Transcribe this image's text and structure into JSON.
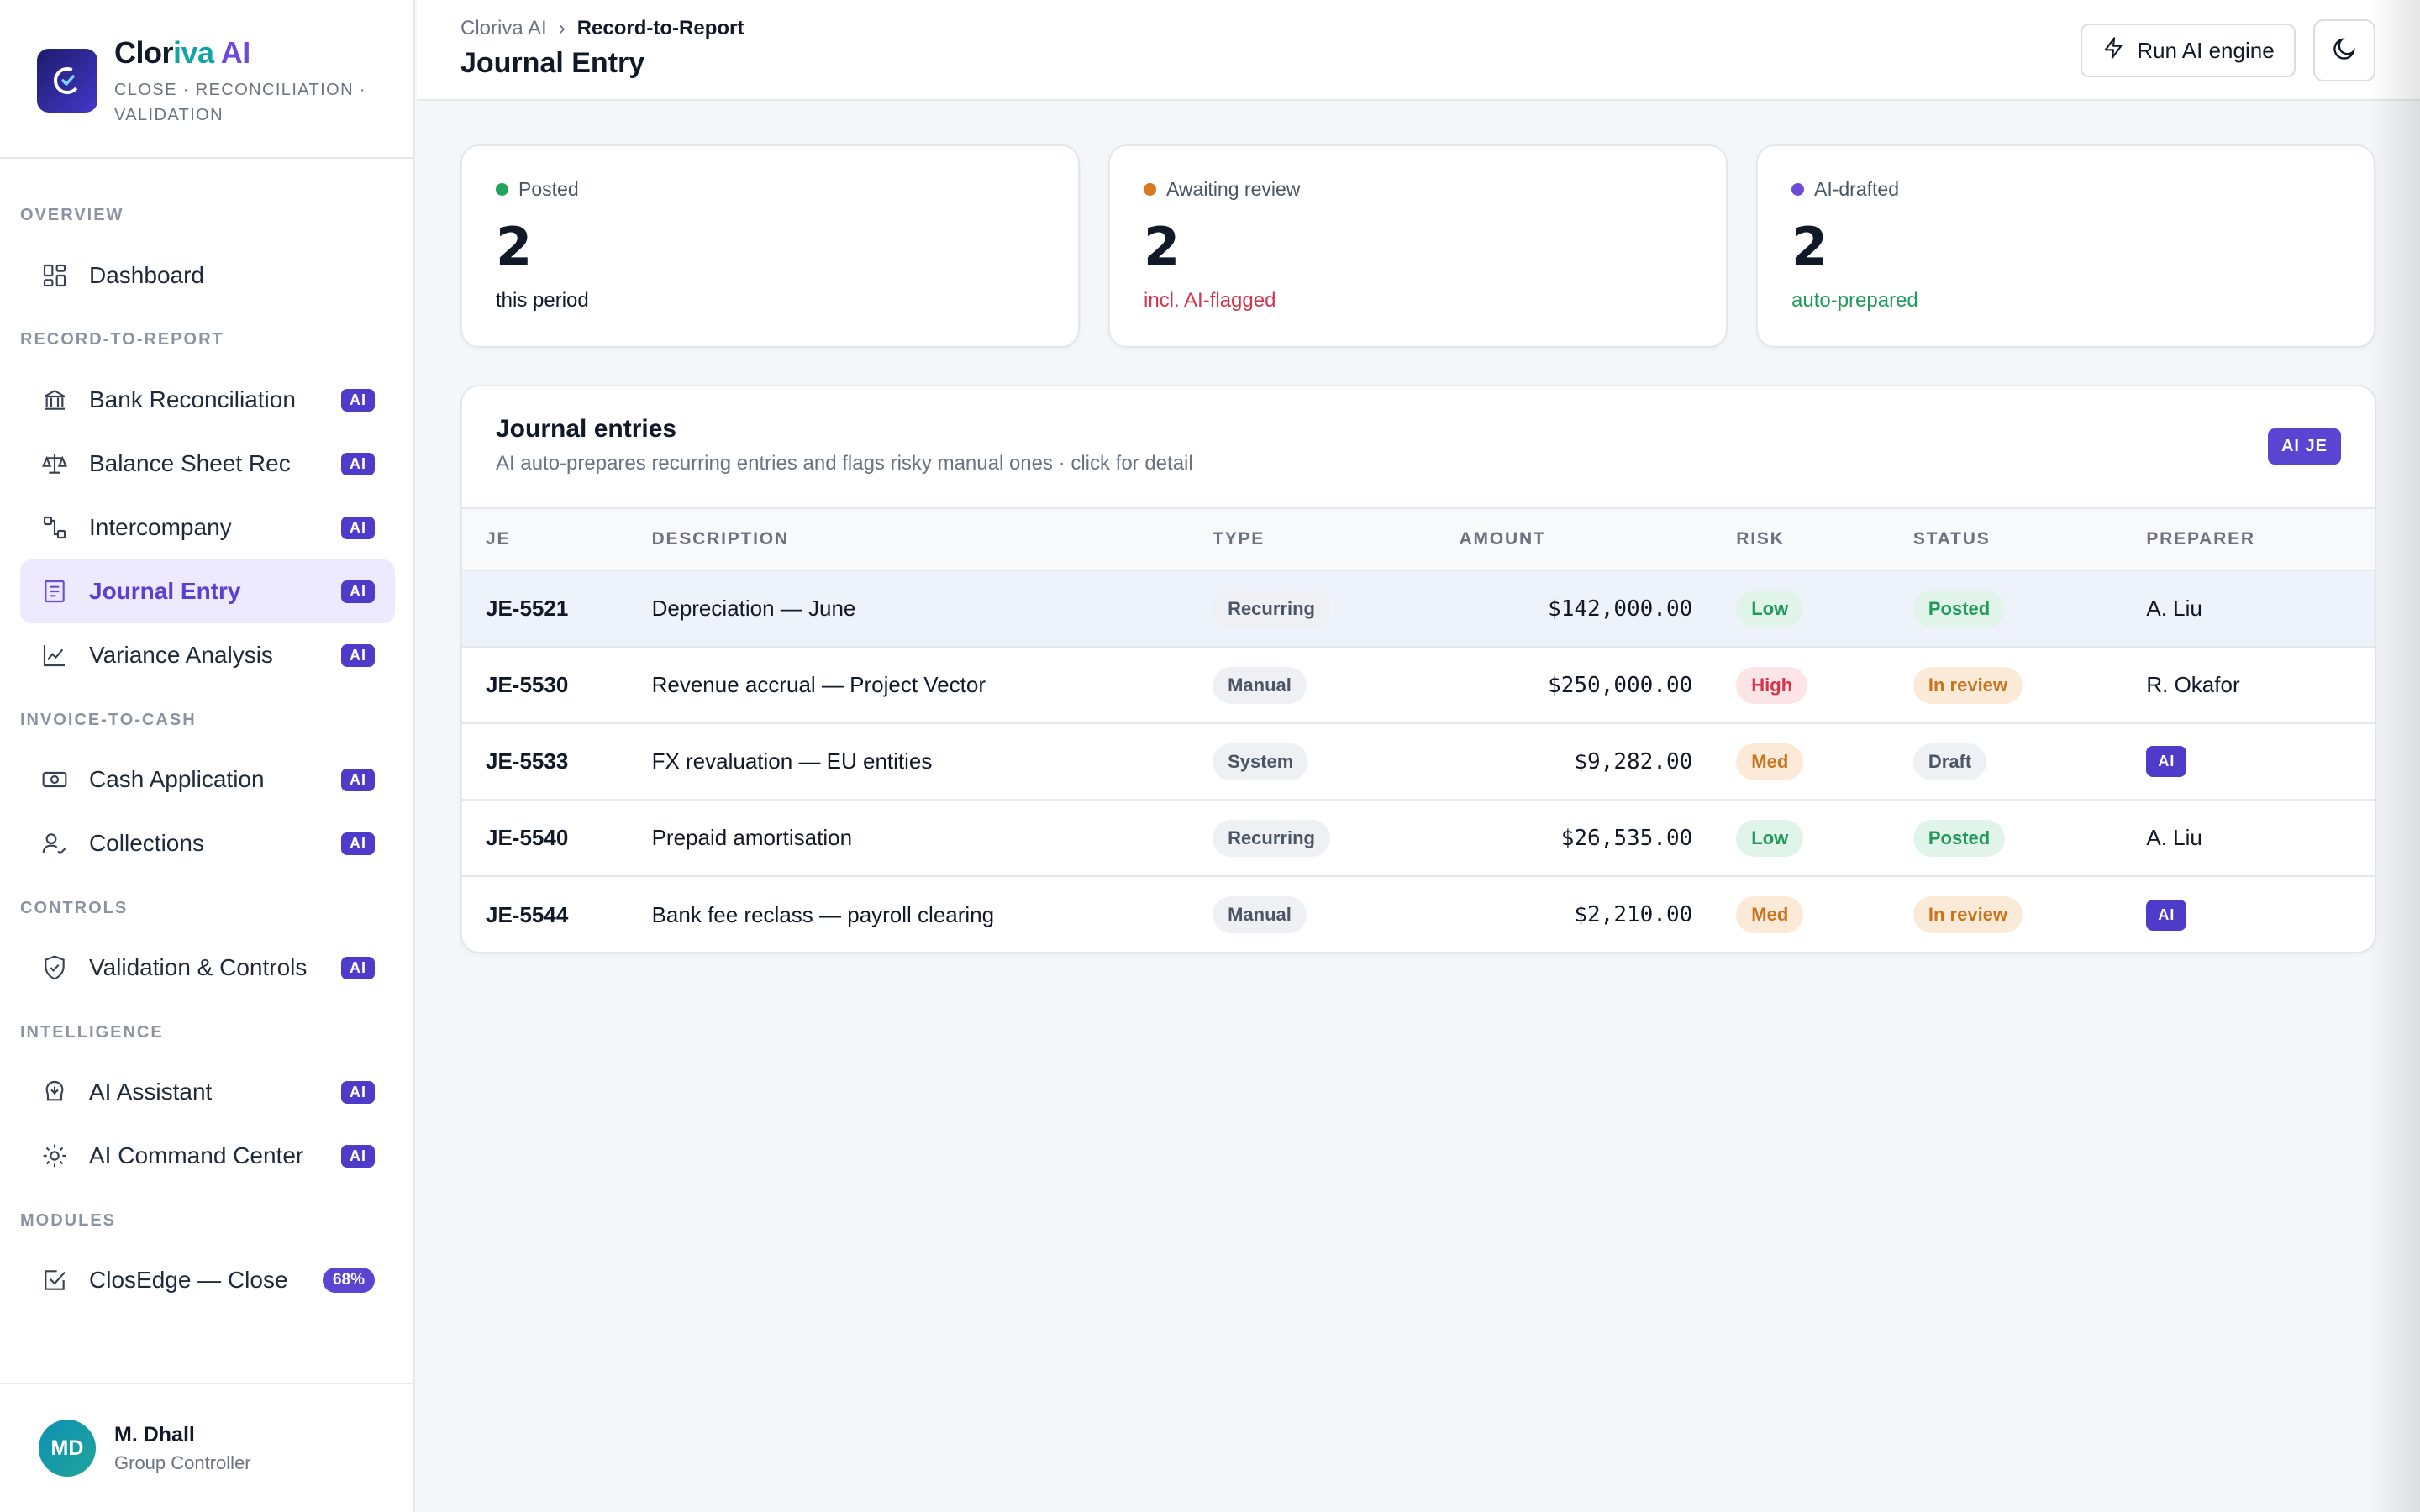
{
  "brand": {
    "name_part1": "Clor",
    "name_part2": "iva",
    "name_part3": " AI",
    "tagline": "CLOSE · RECONCILIATION · VALIDATION"
  },
  "nav": {
    "sections": {
      "overview": "OVERVIEW",
      "r2r": "RECORD-TO-REPORT",
      "i2c": "INVOICE-TO-CASH",
      "controls": "CONTROLS",
      "intelligence": "INTELLIGENCE",
      "modules": "MODULES"
    },
    "items": {
      "dashboard": {
        "label": "Dashboard",
        "icon": "dashboard-icon"
      },
      "bank_rec": {
        "label": "Bank Reconciliation",
        "badge": "AI",
        "icon": "bank-icon"
      },
      "bs_rec": {
        "label": "Balance Sheet Rec",
        "badge": "AI",
        "icon": "scale-icon"
      },
      "interco": {
        "label": "Intercompany",
        "badge": "AI",
        "icon": "flow-icon"
      },
      "journal": {
        "label": "Journal Entry",
        "badge": "AI",
        "icon": "journal-icon",
        "active": true
      },
      "variance": {
        "label": "Variance Analysis",
        "badge": "AI",
        "icon": "chart-line-icon"
      },
      "cash_app": {
        "label": "Cash Application",
        "badge": "AI",
        "icon": "cash-icon"
      },
      "collections": {
        "label": "Collections",
        "badge": "AI",
        "icon": "user-check-icon"
      },
      "validation": {
        "label": "Validation & Controls",
        "badge": "AI",
        "icon": "shield-check-icon"
      },
      "assistant": {
        "label": "AI Assistant",
        "badge": "AI",
        "icon": "brain-icon"
      },
      "command": {
        "label": "AI Command Center",
        "badge": "AI",
        "icon": "gear-icon"
      },
      "closedge": {
        "label": "ClosEdge — Close",
        "badge": "68%",
        "icon": "checkbox-icon"
      }
    }
  },
  "user": {
    "initials": "MD",
    "name": "M. Dhall",
    "role": "Group Controller"
  },
  "header": {
    "breadcrumb_root": "Cloriva AI",
    "breadcrumb_sep": "›",
    "breadcrumb_current": "Record-to-Report",
    "title": "Journal Entry",
    "run_label": "Run AI engine"
  },
  "stats": [
    {
      "label": "Posted",
      "value": "2",
      "sub": "this period",
      "dot": "#22a35b",
      "sub_color": "#111827"
    },
    {
      "label": "Awaiting review",
      "value": "2",
      "sub": "incl. AI-flagged",
      "dot": "#d97a1f",
      "sub_color": "#d5344c"
    },
    {
      "label": "AI-drafted",
      "value": "2",
      "sub": "auto-prepared",
      "dot": "#6d4bd8",
      "sub_color": "#1f9a5a"
    }
  ],
  "journal": {
    "title": "Journal entries",
    "subtitle": "AI auto-prepares recurring entries and flags risky manual ones · click for detail",
    "badge": "AI JE",
    "columns": {
      "je": "JE",
      "description": "DESCRIPTION",
      "type": "TYPE",
      "amount": "AMOUNT",
      "risk": "RISK",
      "status": "STATUS",
      "preparer": "PREPARER"
    },
    "rows": [
      {
        "je": "JE-5521",
        "description": "Depreciation — June",
        "type": "Recurring",
        "amount": "$142,000.00",
        "risk": "Low",
        "status": "Posted",
        "preparer": "A. Liu"
      },
      {
        "je": "JE-5530",
        "description": "Revenue accrual — Project Vector",
        "type": "Manual",
        "amount": "$250,000.00",
        "risk": "High",
        "status": "In review",
        "preparer": "R. Okafor"
      },
      {
        "je": "JE-5533",
        "description": "FX revaluation — EU entities",
        "type": "System",
        "amount": "$9,282.00",
        "risk": "Med",
        "status": "Draft",
        "preparer": "AI"
      },
      {
        "je": "JE-5540",
        "description": "Prepaid amortisation",
        "type": "Recurring",
        "amount": "$26,535.00",
        "risk": "Low",
        "status": "Posted",
        "preparer": "A. Liu"
      },
      {
        "je": "JE-5544",
        "description": "Bank fee reclass — payroll clearing",
        "type": "Manual",
        "amount": "$2,210.00",
        "risk": "Med",
        "status": "In review",
        "preparer": "AI"
      }
    ]
  }
}
